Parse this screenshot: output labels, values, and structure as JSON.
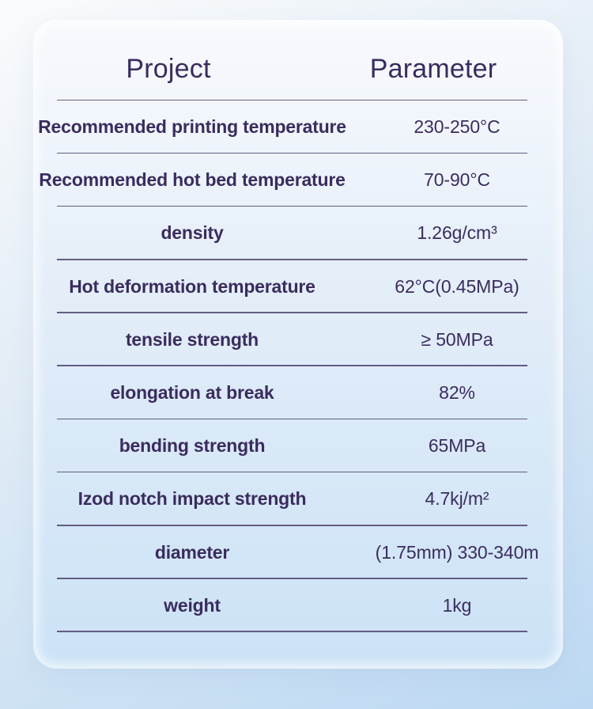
{
  "table": {
    "headers": {
      "project": "Project",
      "parameter": "Parameter"
    },
    "rows": [
      {
        "label": "Recommended printing temperature",
        "value": "230-250°C"
      },
      {
        "label": "Recommended hot bed temperature",
        "value": "70-90°C"
      },
      {
        "label": "density",
        "value": "1.26g/cm³"
      },
      {
        "label": "Hot deformation temperature",
        "value": "62°C(0.45MPa)"
      },
      {
        "label": "tensile strength",
        "value": "≥ 50MPa"
      },
      {
        "label": "elongation at break",
        "value": "82%"
      },
      {
        "label": "bending strength",
        "value": "65MPa"
      },
      {
        "label": "Izod notch impact strength",
        "value": "4.7kj/m²"
      },
      {
        "label": "diameter",
        "value": "(1.75mm) 330-340m"
      },
      {
        "label": "weight",
        "value": "1kg"
      }
    ]
  },
  "colors": {
    "text": "#3a2c5e",
    "divider": "#4e4370",
    "card_top": "#f8fafd",
    "card_bottom": "#cbe2f6",
    "background_top": "#fafbfc",
    "background_bottom": "#bcd8f2"
  }
}
